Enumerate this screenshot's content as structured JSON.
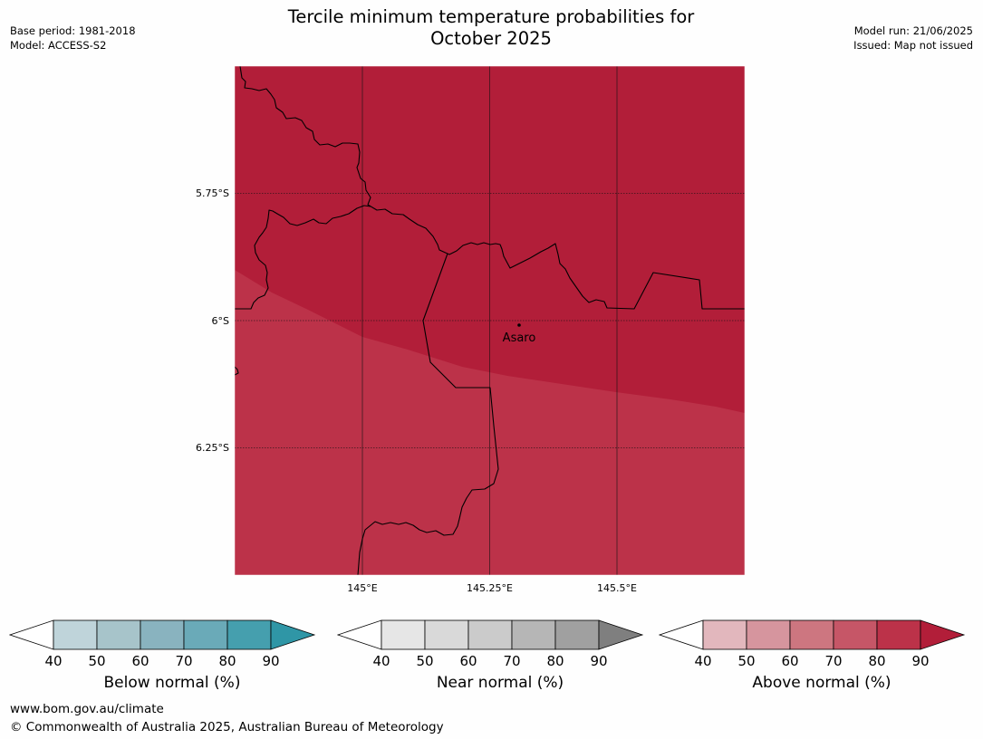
{
  "header": {
    "title_line1": "Tercile minimum temperature probabilities for",
    "title_line2": "October 2025",
    "base_period": "Base period: 1981-2018",
    "model": "Model: ACCESS-S2",
    "model_run": "Model run: 21/06/2025",
    "issued": "Issued: Map not issued"
  },
  "map": {
    "lat_labels": [
      "5.75°S",
      "6°S",
      "6.25°S"
    ],
    "lon_labels": [
      "145°E",
      "145.25°E",
      "145.5°E"
    ],
    "place": "Asaro",
    "fill_colors": {
      "above_80_90": "#b21e39",
      "above_70_80": "#bc3249"
    }
  },
  "colorbars": [
    {
      "label": "Below normal (%)",
      "ticks": [
        "40",
        "50",
        "60",
        "70",
        "80",
        "90"
      ],
      "colors": [
        "#bfd4da",
        "#a7c4ca",
        "#89b3bf",
        "#6aaab8",
        "#459fae"
      ],
      "extend_color": "#2f96a6"
    },
    {
      "label": "Near normal (%)",
      "ticks": [
        "40",
        "50",
        "60",
        "70",
        "80",
        "90"
      ],
      "colors": [
        "#e6e6e6",
        "#d9d9d9",
        "#cbcbcb",
        "#b6b6b6",
        "#a0a0a0"
      ],
      "extend_color": "#7f7f7f"
    },
    {
      "label": "Above normal (%)",
      "ticks": [
        "40",
        "50",
        "60",
        "70",
        "80",
        "90"
      ],
      "colors": [
        "#e2b7bd",
        "#d6959e",
        "#cd7680",
        "#c65667",
        "#bc3249"
      ],
      "extend_color": "#b21e39"
    }
  ],
  "footer": {
    "url": "www.bom.gov.au/climate",
    "copyright": "© Commonwealth of Australia 2025, Australian Bureau of Meteorology"
  }
}
